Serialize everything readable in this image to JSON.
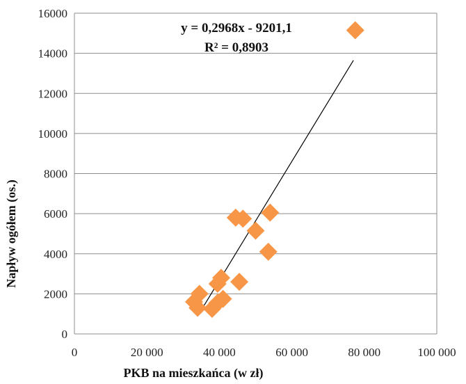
{
  "chart_data": {
    "type": "scatter",
    "title": "",
    "xlabel": "PKB na mieszkańca (w  zł)",
    "ylabel": "Napływ  ogółem (os.)",
    "xlim": [
      0,
      100000
    ],
    "ylim": [
      0,
      16000
    ],
    "x_ticks": [
      0,
      20000,
      40000,
      60000,
      80000,
      100000
    ],
    "x_tick_labels": [
      "0",
      "20 000",
      "40 000",
      "60 000",
      "80 000",
      "100 000"
    ],
    "y_ticks": [
      0,
      2000,
      4000,
      6000,
      8000,
      10000,
      12000,
      14000,
      16000
    ],
    "y_tick_labels": [
      "0",
      "2000",
      "4000",
      "6000",
      "8000",
      "10000",
      "12000",
      "14000",
      "16000"
    ],
    "grid": "horizontal",
    "marker_color": "#f79646",
    "points": [
      {
        "x": 77500,
        "y": 15150
      },
      {
        "x": 54000,
        "y": 6050
      },
      {
        "x": 44500,
        "y": 5800
      },
      {
        "x": 46500,
        "y": 5750
      },
      {
        "x": 50000,
        "y": 5150
      },
      {
        "x": 53500,
        "y": 4100
      },
      {
        "x": 40500,
        "y": 2800
      },
      {
        "x": 39500,
        "y": 2500
      },
      {
        "x": 45500,
        "y": 2600
      },
      {
        "x": 34500,
        "y": 2000
      },
      {
        "x": 33000,
        "y": 1600
      },
      {
        "x": 34000,
        "y": 1300
      },
      {
        "x": 38000,
        "y": 1250
      },
      {
        "x": 41000,
        "y": 1750
      },
      {
        "x": 39500,
        "y": 1550
      }
    ],
    "trendline": {
      "slope": 0.2968,
      "intercept": -9201.1,
      "x_start": 34000,
      "x_end": 77000,
      "equation_label": "y = 0,2968x - 9201,1",
      "r2_label": "R² = 0,8903"
    }
  }
}
